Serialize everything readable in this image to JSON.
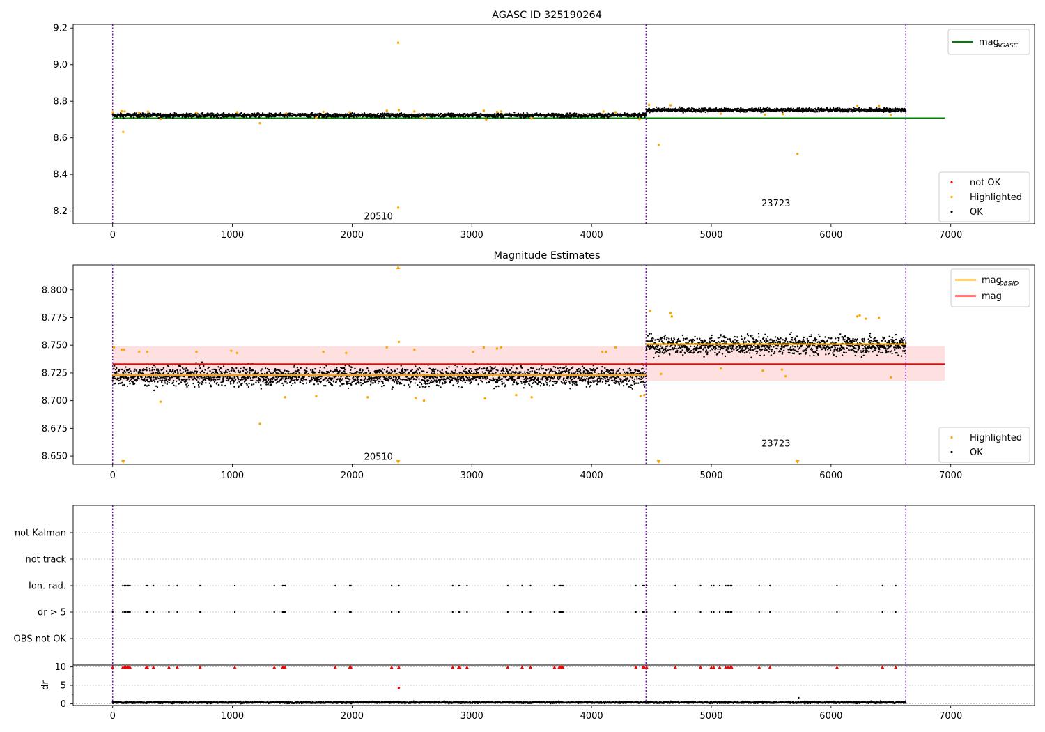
{
  "chart_data": [
    {
      "type": "scatter",
      "title": "AGASC ID 325190264",
      "xlim": [
        -330,
        7700
      ],
      "ylim": [
        8.13,
        9.22
      ],
      "xticks": [
        0,
        1000,
        2000,
        3000,
        4000,
        5000,
        6000,
        7000
      ],
      "yticks": [
        8.2,
        8.4,
        8.6,
        8.8,
        9.0,
        9.2
      ],
      "ytick_labels": [
        "8.2",
        "8.4",
        "8.6",
        "8.8",
        "9.0",
        "9.2"
      ],
      "legends": [
        {
          "placement": "upper right",
          "entries": [
            {
              "label": "mag",
              "subscript": "AGASC",
              "kind": "line",
              "color": "#008000"
            }
          ]
        },
        {
          "placement": "lower right",
          "entries": [
            {
              "label": "not OK",
              "kind": "marker",
              "color": "#ff0000"
            },
            {
              "label": "Highlighted",
              "kind": "marker",
              "color": "#ffa500"
            },
            {
              "label": "OK",
              "kind": "marker",
              "color": "#000000"
            }
          ]
        }
      ],
      "obsid_labels": [
        {
          "text": "20510",
          "x": 2220,
          "y": 8.17
        },
        {
          "text": "23723",
          "x": 5540,
          "y": 8.24
        }
      ],
      "vlines": [
        0,
        4455,
        6625
      ],
      "hlines": [
        {
          "name": "mag_AGASC",
          "y": 8.708,
          "x": [
            0,
            6950
          ],
          "color": "#008000"
        }
      ],
      "ok_bands": [
        {
          "x": [
            0,
            4455
          ],
          "center": 8.723,
          "spread": 0.009
        },
        {
          "x": [
            4455,
            6625
          ],
          "center": 8.752,
          "spread": 0.009
        }
      ],
      "highlighted_points": [
        [
          2,
          8.74
        ],
        [
          75,
          8.745
        ],
        [
          88,
          8.632
        ],
        [
          100,
          8.744
        ],
        [
          220,
          8.738
        ],
        [
          295,
          8.743
        ],
        [
          400,
          8.703
        ],
        [
          700,
          8.738
        ],
        [
          1040,
          8.74
        ],
        [
          1230,
          8.68
        ],
        [
          1450,
          8.733
        ],
        [
          1700,
          8.71
        ],
        [
          1760,
          8.742
        ],
        [
          1980,
          8.74
        ],
        [
          2290,
          8.748
        ],
        [
          2385,
          9.12
        ],
        [
          2385,
          8.218
        ],
        [
          2390,
          8.752
        ],
        [
          2520,
          8.744
        ],
        [
          2600,
          8.706
        ],
        [
          3100,
          8.748
        ],
        [
          3120,
          8.7
        ],
        [
          3210,
          8.742
        ],
        [
          3245,
          8.744
        ],
        [
          3500,
          8.706
        ],
        [
          4100,
          8.744
        ],
        [
          4200,
          8.74
        ],
        [
          4400,
          8.702
        ],
        [
          4480,
          8.78
        ],
        [
          4560,
          8.561
        ],
        [
          4660,
          8.778
        ],
        [
          5080,
          8.732
        ],
        [
          5450,
          8.726
        ],
        [
          5600,
          8.73
        ],
        [
          5720,
          8.512
        ],
        [
          6220,
          8.776
        ],
        [
          6400,
          8.776
        ],
        [
          6500,
          8.723
        ]
      ]
    },
    {
      "type": "scatter",
      "title": "Magnitude Estimates",
      "xlim": [
        -330,
        7700
      ],
      "ylim": [
        8.6425,
        8.8225
      ],
      "xticks": [
        0,
        1000,
        2000,
        3000,
        4000,
        5000,
        6000,
        7000
      ],
      "yticks": [
        8.65,
        8.675,
        8.7,
        8.725,
        8.75,
        8.775,
        8.8
      ],
      "ytick_labels": [
        "8.650",
        "8.675",
        "8.700",
        "8.725",
        "8.750",
        "8.775",
        "8.800"
      ],
      "legends": [
        {
          "placement": "upper right",
          "entries": [
            {
              "label": "mag",
              "subscript": "OBSID",
              "kind": "line",
              "color": "#ffa500"
            },
            {
              "label": "mag",
              "kind": "line",
              "color": "#ff0000"
            }
          ]
        },
        {
          "placement": "lower right",
          "entries": [
            {
              "label": "Highlighted",
              "kind": "marker",
              "color": "#ffa500"
            },
            {
              "label": "OK",
              "kind": "marker",
              "color": "#000000"
            }
          ]
        }
      ],
      "obsid_labels": [
        {
          "text": "20510",
          "x": 2220,
          "y": 8.649
        },
        {
          "text": "23723",
          "x": 5540,
          "y": 8.661
        }
      ],
      "vlines": [
        0,
        4455,
        6625
      ],
      "mag_line": {
        "y": 8.733,
        "x": [
          0,
          6950
        ],
        "color": "#ff0000"
      },
      "mag_band": {
        "y": [
          8.718,
          8.749
        ],
        "x": [
          0,
          6950
        ],
        "color": "#ffdddd"
      },
      "obsid_lines": [
        {
          "obsid": "20510",
          "y": 8.723,
          "x": [
            0,
            4455
          ],
          "color": "#ffa500"
        },
        {
          "obsid": "23723",
          "y": 8.751,
          "x": [
            4455,
            6625
          ],
          "color": "#ffa500"
        }
      ],
      "ok_bands": [
        {
          "x": [
            0,
            4455
          ],
          "center": 8.722,
          "spread": 0.007
        },
        {
          "x": [
            4455,
            6625
          ],
          "center": 8.75,
          "spread": 0.007
        }
      ],
      "highlighted_points": [
        [
          10,
          8.748
        ],
        [
          75,
          8.746
        ],
        [
          95,
          8.746
        ],
        [
          220,
          8.744
        ],
        [
          290,
          8.744
        ],
        [
          400,
          8.699
        ],
        [
          700,
          8.744
        ],
        [
          990,
          8.745
        ],
        [
          1040,
          8.743
        ],
        [
          1230,
          8.679
        ],
        [
          1440,
          8.703
        ],
        [
          1700,
          8.704
        ],
        [
          1760,
          8.744
        ],
        [
          1950,
          8.743
        ],
        [
          2130,
          8.703
        ],
        [
          2290,
          8.748
        ],
        [
          2390,
          8.753
        ],
        [
          2520,
          8.746
        ],
        [
          2530,
          8.702
        ],
        [
          2600,
          8.7
        ],
        [
          3010,
          8.744
        ],
        [
          3100,
          8.748
        ],
        [
          3110,
          8.702
        ],
        [
          3210,
          8.747
        ],
        [
          3245,
          8.748
        ],
        [
          3370,
          8.705
        ],
        [
          3500,
          8.703
        ],
        [
          4090,
          8.744
        ],
        [
          4120,
          8.744
        ],
        [
          4200,
          8.748
        ],
        [
          4410,
          8.704
        ],
        [
          4440,
          8.705
        ],
        [
          4490,
          8.781
        ],
        [
          4580,
          8.724
        ],
        [
          4660,
          8.779
        ],
        [
          4670,
          8.776
        ],
        [
          5080,
          8.729
        ],
        [
          5430,
          8.727
        ],
        [
          5590,
          8.728
        ],
        [
          5620,
          8.722
        ],
        [
          6220,
          8.776
        ],
        [
          6240,
          8.777
        ],
        [
          6290,
          8.774
        ],
        [
          6400,
          8.775
        ],
        [
          6500,
          8.721
        ]
      ],
      "clipped_markers": [
        {
          "x": 2385,
          "edge": "top"
        },
        {
          "x": 88,
          "edge": "bottom"
        },
        {
          "x": 2385,
          "edge": "bottom"
        },
        {
          "x": 4560,
          "edge": "bottom"
        },
        {
          "x": 5720,
          "edge": "bottom"
        }
      ]
    },
    {
      "type": "scatter",
      "xlim": [
        -330,
        7700
      ],
      "categories": [
        "OBS not OK",
        "dr > 5",
        "Ion. rad.",
        "not track",
        "not Kalman"
      ],
      "flag_x": [
        0,
        85,
        100,
        110,
        125,
        135,
        145,
        280,
        290,
        340,
        470,
        540,
        730,
        1020,
        1350,
        1420,
        1430,
        1440,
        1860,
        1980,
        1990,
        2330,
        2390,
        2840,
        2890,
        2900,
        2960,
        3300,
        3420,
        3490,
        3690,
        3730,
        3740,
        3750,
        3760,
        4370,
        4430,
        4440,
        4460,
        4700,
        4910,
        5000,
        5020,
        5070,
        5120,
        5140,
        5160,
        5170,
        5400,
        5490,
        6050,
        6430,
        6540
      ],
      "dr_subplot": {
        "ylabel": "dr",
        "ylim": [
          -0.5,
          10.5
        ],
        "yticks": [
          0,
          5,
          10
        ],
        "ytick_labels": [
          "0",
          "5",
          "10"
        ],
        "clipped_at": 10,
        "outlier": {
          "x": 2390,
          "y": 4.3
        },
        "ok_band": {
          "x": [
            0,
            6625
          ],
          "center": 0.35,
          "spread": 0.25
        },
        "spike": {
          "x": 5730,
          "y": 1.6
        }
      },
      "vlines": [
        0,
        4455,
        6625
      ],
      "xticks": [
        0,
        1000,
        2000,
        3000,
        4000,
        5000,
        6000,
        7000
      ]
    }
  ],
  "colors": {
    "ok": "#000000",
    "highlighted": "#ffa500",
    "not_ok": "#ff0000",
    "agasc_line": "#008000",
    "obs_vline": "#6a0dad"
  }
}
